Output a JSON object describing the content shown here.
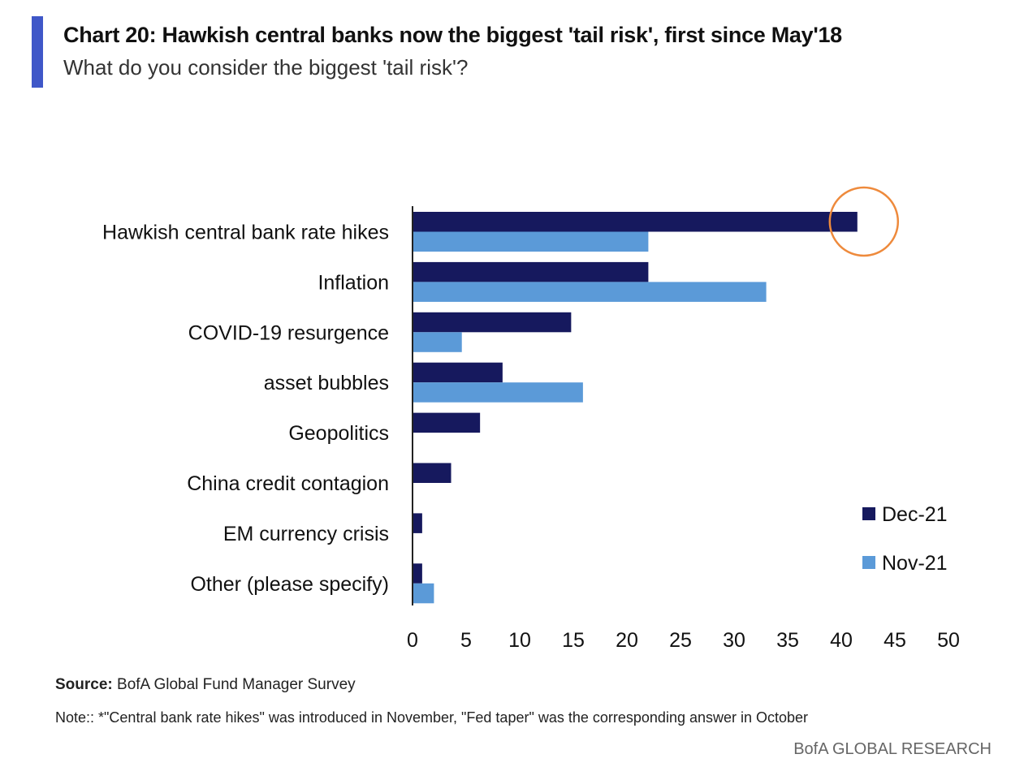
{
  "header": {
    "title": "Chart 20: Hawkish central banks now the biggest 'tail risk', first since May'18",
    "subtitle": "What do you consider the biggest 'tail risk'?"
  },
  "footer": {
    "source_label": "Source:",
    "source_text": "BofA Global Fund Manager Survey",
    "note": "Note:: *\"Central bank rate hikes\" was introduced in November, \"Fed taper\" was the corresponding answer in October",
    "brand": "BofA GLOBAL RESEARCH"
  },
  "chart_data": {
    "type": "bar",
    "orientation": "horizontal",
    "categories": [
      "Hawkish central bank rate hikes",
      "Inflation",
      "COVID-19 resurgence",
      "asset bubbles",
      "Geopolitics",
      "China credit contagion",
      "EM currency crisis",
      "Other (please specify)"
    ],
    "series": [
      {
        "name": "Dec-21",
        "color": "#16195e",
        "values": [
          41.5,
          22,
          14.8,
          8.4,
          6.3,
          3.6,
          0.9,
          0.9
        ]
      },
      {
        "name": "Nov-21",
        "color": "#5b9ad8",
        "values": [
          22,
          33,
          4.6,
          15.9,
          0,
          0,
          0,
          2
        ]
      }
    ],
    "xlim": [
      0,
      50
    ],
    "xticks": [
      0,
      5,
      10,
      15,
      20,
      25,
      30,
      35,
      40,
      45,
      50
    ],
    "grid": false,
    "legend": "bottom-right",
    "highlight": {
      "category": "Hawkish central bank rate hikes",
      "series": "Dec-21",
      "shape": "circle",
      "color": "#ee8a3c"
    }
  }
}
